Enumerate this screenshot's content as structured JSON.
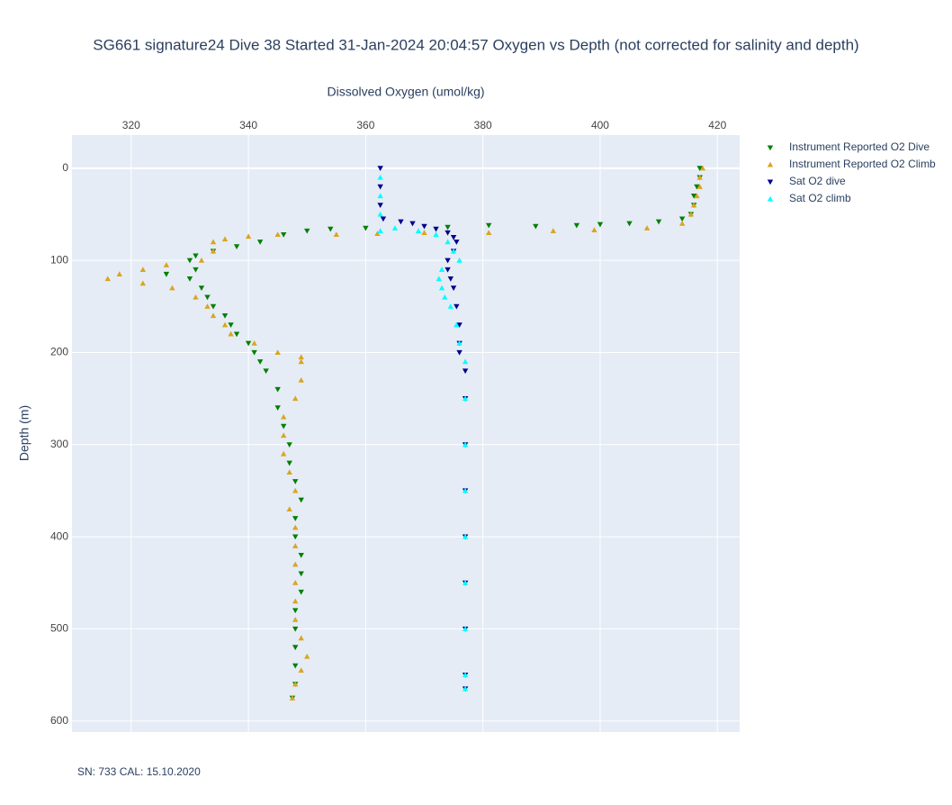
{
  "chart_data": {
    "type": "scatter",
    "title": "SG661 signature24 Dive 38 Started 31-Jan-2024 20:04:57  Oxygen vs Depth (not corrected for salinity and depth)",
    "x_label": "Dissolved Oxygen (umol/kg)",
    "y_label": "Depth (m)",
    "footnote": "SN: 733  CAL: 15.10.2020",
    "xlim": [
      309.9,
      423.8
    ],
    "xticks": [
      320,
      340,
      360,
      380,
      400,
      420
    ],
    "x_axis_side": "top",
    "ylim": [
      -36,
      612
    ],
    "yticks": [
      0,
      100,
      200,
      300,
      400,
      500,
      600
    ],
    "y_reversed": true,
    "grid": true,
    "legend": "top-right",
    "series": [
      {
        "name": "Instrument Reported O2 Dive",
        "color": "#008000",
        "marker": "triangle-down",
        "x": [
          417,
          417,
          416.5,
          416,
          416,
          415.5,
          414,
          410,
          405,
          400,
          396,
          389,
          381,
          374,
          360,
          354,
          350,
          346,
          342,
          338,
          334,
          331,
          330,
          331,
          326,
          330,
          332,
          333,
          334,
          336,
          337,
          338,
          340,
          341,
          342,
          343,
          345,
          345,
          346,
          347,
          347,
          348,
          349,
          348,
          348,
          349,
          349,
          349,
          348,
          348,
          348,
          348,
          348,
          347.5
        ],
        "y": [
          0,
          10,
          20,
          30,
          40,
          50,
          55,
          58,
          60,
          61,
          62,
          63,
          62,
          64,
          65,
          66,
          68,
          72,
          80,
          85,
          90,
          95,
          100,
          110,
          115,
          120,
          130,
          140,
          150,
          160,
          170,
          180,
          190,
          200,
          210,
          220,
          240,
          260,
          280,
          300,
          320,
          340,
          360,
          380,
          400,
          420,
          440,
          460,
          480,
          500,
          520,
          540,
          560,
          575
        ]
      },
      {
        "name": "Instrument Reported O2 Climb",
        "color": "#daa520",
        "marker": "triangle-up",
        "x": [
          417.5,
          417,
          417,
          416.5,
          416,
          415.5,
          414,
          408,
          399,
          392,
          381,
          370,
          362,
          355,
          345,
          340,
          336,
          334,
          334,
          332,
          326,
          322,
          318,
          316,
          322,
          327,
          331,
          333,
          334,
          336,
          337,
          341,
          345,
          349,
          349,
          349,
          348,
          346,
          346,
          346,
          347,
          348,
          347,
          348,
          348,
          348,
          348,
          348,
          348,
          349,
          350,
          349,
          348,
          347.5
        ],
        "y": [
          0,
          10,
          20,
          30,
          40,
          50,
          60,
          65,
          67,
          68,
          70,
          70,
          71,
          72,
          72,
          74,
          77,
          80,
          90,
          100,
          105,
          110,
          115,
          120,
          125,
          130,
          140,
          150,
          160,
          170,
          180,
          190,
          200,
          205,
          210,
          230,
          250,
          270,
          290,
          310,
          330,
          350,
          370,
          390,
          410,
          430,
          450,
          470,
          490,
          510,
          530,
          545,
          560,
          575
        ]
      },
      {
        "name": "Sat O2 dive",
        "color": "#00008b",
        "marker": "triangle-down",
        "x": [
          362.5,
          362.5,
          362.5,
          363,
          366,
          368,
          370,
          372,
          374,
          375,
          375.5,
          375,
          374,
          374,
          374.5,
          375,
          375.5,
          376,
          376,
          376,
          377,
          377,
          377,
          377,
          377,
          377,
          377,
          377,
          377
        ],
        "y": [
          0,
          20,
          40,
          55,
          58,
          60,
          63,
          66,
          70,
          75,
          80,
          90,
          100,
          110,
          120,
          130,
          150,
          170,
          190,
          200,
          220,
          250,
          300,
          350,
          400,
          450,
          500,
          550,
          565
        ]
      },
      {
        "name": "Sat O2 climb",
        "color": "#00ffff",
        "marker": "triangle-up",
        "x": [
          362.5,
          362.5,
          362.5,
          362.5,
          365,
          369,
          372,
          374,
          375,
          376,
          373,
          372.5,
          373,
          373.5,
          374.5,
          375.5,
          376,
          377,
          377,
          377,
          377,
          377,
          377,
          377,
          377,
          377
        ],
        "y": [
          10,
          30,
          50,
          68,
          65,
          68,
          72,
          80,
          90,
          100,
          110,
          120,
          130,
          140,
          150,
          170,
          190,
          210,
          250,
          300,
          350,
          400,
          450,
          500,
          550,
          565
        ]
      }
    ]
  }
}
